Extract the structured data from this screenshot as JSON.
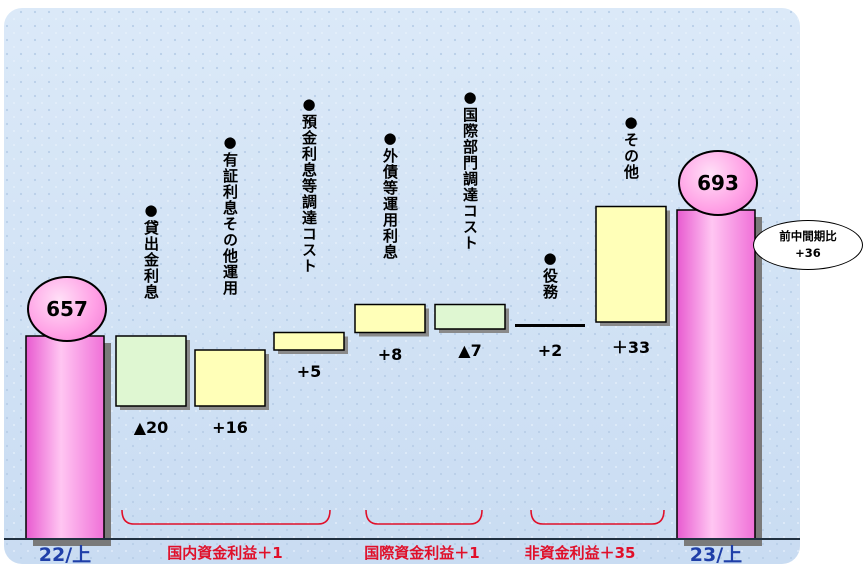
{
  "chart_data": {
    "type": "waterfall",
    "start": {
      "label": "22/上",
      "value": 657
    },
    "end": {
      "label": "23/上",
      "value": 693
    },
    "steps": [
      {
        "label": "●貸出金利息",
        "value": -20,
        "display": "▲20",
        "color": "#dff7d2"
      },
      {
        "label": "●有証利息その他運用",
        "value": 16,
        "display": "+16",
        "color": "#ffffb8"
      },
      {
        "label": "●預金利息等調達コスト",
        "value": 5,
        "display": "+5",
        "color": "#ffffb8"
      },
      {
        "label": "●外債等運用利息",
        "value": 8,
        "display": "+8",
        "color": "#ffffb8"
      },
      {
        "label": "●国際部門調達コスト",
        "value": -7,
        "display": "▲7",
        "color": "#dff7d2"
      },
      {
        "label": "●役務",
        "value": 2,
        "display": "+2",
        "color": "#000000"
      },
      {
        "label": "●その他",
        "value": 33,
        "display": "＋33",
        "color": "#ffffb8"
      }
    ],
    "groups": [
      {
        "label": "国内資金利益＋1",
        "from": 0,
        "to": 2
      },
      {
        "label": "国際資金利益＋1",
        "from": 3,
        "to": 4
      },
      {
        "label": "非資金利益＋35",
        "from": 5,
        "to": 6
      }
    ],
    "note": {
      "line1": "前中間期比",
      "line2": "+36"
    },
    "colors": {
      "total_bar": "#ff80e6",
      "bracket": "#e0102a",
      "axis_text": "#1f3fa8"
    }
  }
}
